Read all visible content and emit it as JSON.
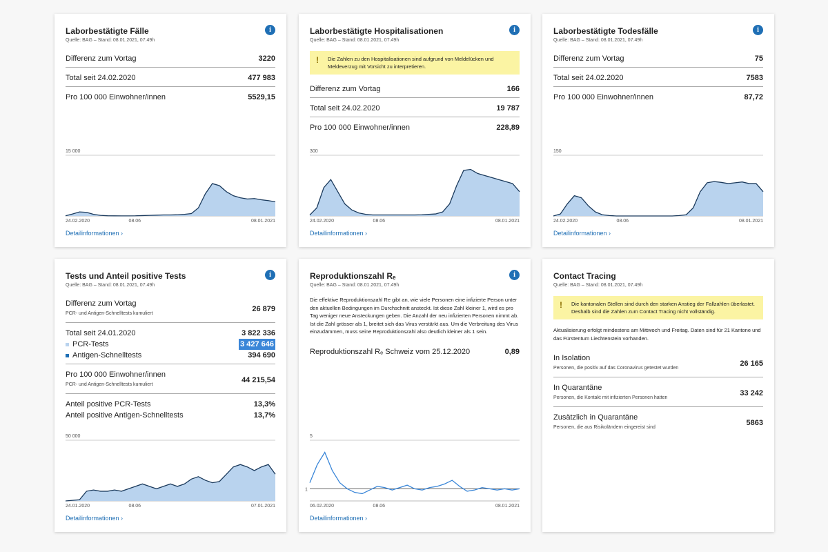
{
  "cards": [
    {
      "title": "Laborbestätigte Fälle",
      "source": "Quelle: BAG – Stand: 08.01.2021, 07.49h",
      "info": true,
      "rows": [
        {
          "label": "Differenz zum Vortag",
          "value": "3220"
        },
        {
          "label": "Total seit 24.02.2020",
          "value": "477 983"
        },
        {
          "label": "Pro 100 000 Einwohner/innen",
          "value": "5529,15"
        }
      ],
      "chart": {
        "ylim": [
          0,
          15000
        ],
        "yticks": [
          {
            "value": 15000,
            "label": "15 000"
          }
        ],
        "xlabels": [
          "24.02.2020",
          "08.06",
          "08.01.2021"
        ],
        "values": [
          50,
          500,
          1000,
          900,
          400,
          150,
          50,
          30,
          20,
          20,
          40,
          100,
          150,
          200,
          250,
          250,
          300,
          400,
          600,
          2000,
          5500,
          8000,
          7500,
          6000,
          5000,
          4500,
          4200,
          4300,
          4000,
          3800,
          3500
        ]
      },
      "link": "Detailinformationen"
    },
    {
      "title": "Laborbestätigte Hospitalisationen",
      "source": "Quelle: BAG – Stand: 08.01.2021, 07.49h",
      "info": true,
      "notice": "Die Zahlen zu den Hospitalisationen sind aufgrund von Meldelücken und Meldeverzug mit Vorsicht zu interpretieren.",
      "rows": [
        {
          "label": "Differenz zum Vortag",
          "value": "166"
        },
        {
          "label": "Total seit 24.02.2020",
          "value": "19 787"
        },
        {
          "label": "Pro 100 000 Einwohner/innen",
          "value": "228,89"
        }
      ],
      "chart": {
        "ylim": [
          0,
          300
        ],
        "yticks": [
          300
        ],
        "xlabels": [
          "24.02.2020",
          "08.06",
          "08.01.2021"
        ],
        "values": [
          5,
          40,
          140,
          180,
          120,
          60,
          30,
          15,
          8,
          5,
          5,
          5,
          5,
          5,
          5,
          5,
          6,
          8,
          10,
          20,
          60,
          150,
          225,
          230,
          210,
          200,
          190,
          180,
          170,
          160,
          120
        ]
      },
      "link": "Detailinformationen"
    },
    {
      "title": "Laborbestätigte Todesfälle",
      "source": "Quelle: BAG – Stand: 08.01.2021, 07.49h",
      "info": true,
      "rows": [
        {
          "label": "Differenz zum Vortag",
          "value": "75"
        },
        {
          "label": "Total seit 24.02.2020",
          "value": "7583"
        },
        {
          "label": "Pro 100 000 Einwohner/innen",
          "value": "87,72"
        }
      ],
      "chart": {
        "ylim": [
          0,
          150
        ],
        "yticks": [
          150
        ],
        "xlabels": [
          "24.02.2020",
          "08.06",
          "08.01.2021"
        ],
        "values": [
          0,
          5,
          30,
          50,
          45,
          25,
          10,
          3,
          1,
          0,
          0,
          0,
          0,
          0,
          0,
          0,
          0,
          0,
          1,
          3,
          20,
          60,
          82,
          85,
          83,
          80,
          82,
          84,
          80,
          80,
          60
        ]
      },
      "link": "Detailinformationen"
    },
    {
      "title": "Tests und Anteil positive Tests",
      "source": "Quelle: BAG – Stand: 08.01.2021, 07.49h",
      "info": true,
      "rows": [
        {
          "label": "Differenz zum Vortag",
          "sub": "PCR- und Antigen-Schnelltests kumuliert",
          "value": "26 879"
        },
        {
          "label": "Total seit 24.01.2020",
          "value": "3 822 336",
          "items": [
            {
              "label": "PCR-Tests",
              "value": "3 427 646",
              "color": "#b9d3ee",
              "highlight": true
            },
            {
              "label": "Antigen-Schnelltests",
              "value": "394 690",
              "color": "#1f6fb5"
            }
          ]
        },
        {
          "label": "Pro 100 000 Einwohner/innen",
          "sub": "PCR- und Antigen-Schnelltests kumuliert",
          "value": "44 215,54"
        },
        {
          "label": "Anteil positive PCR-Tests",
          "value": "13,3%",
          "items": [
            {
              "label": "Anteil positive Antigen-Schnelltests",
              "value": "13,7%"
            }
          ]
        }
      ],
      "chart": {
        "ylim": [
          0,
          50000
        ],
        "yticks": [
          {
            "value": 50000,
            "label": "50 000"
          }
        ],
        "xlabels": [
          "24.01.2020",
          "08.06",
          "07.01.2021"
        ],
        "values": [
          0,
          500,
          1000,
          8000,
          9000,
          8000,
          8000,
          9000,
          8000,
          10000,
          12000,
          14000,
          12000,
          10000,
          12000,
          14000,
          12000,
          14000,
          18000,
          20000,
          17000,
          15000,
          16000,
          22000,
          28000,
          30000,
          28000,
          25000,
          28000,
          30000,
          22000
        ]
      },
      "link": "Detailinformationen"
    },
    {
      "title": "Reproduktionszahl Rₑ",
      "source": "Quelle: BAG – Stand: 08.01.2021, 07.49h",
      "info": true,
      "desc": "Die effektive Reproduktionszahl Re gibt an, wie viele Personen eine infizierte Person unter den aktuellen Bedingungen im Durchschnitt ansteckt. Ist diese Zahl kleiner 1, wird es pro Tag weniger neue Ansteckungen geben. Die Anzahl der neu infizierten Personen nimmt ab. Ist die Zahl grösser als 1, breitet sich das Virus verstärkt aus. Um die Verbreitung des Virus einzudämmen, muss seine Reproduktionszahl also deutlich kleiner als 1 sein.",
      "rows": [
        {
          "label": "Reproduktionszahl Rₑ Schweiz vom 25.12.2020",
          "value": "0,89"
        }
      ],
      "chart": {
        "ylim": [
          0,
          5
        ],
        "yticks": [
          5,
          1
        ],
        "xlabels": [
          "06.02.2020",
          "08.06",
          "08.01.2021"
        ],
        "line_only": true,
        "values": [
          1.5,
          3,
          4,
          2.5,
          1.5,
          1,
          0.7,
          0.6,
          0.9,
          1.2,
          1.1,
          0.9,
          1.1,
          1.3,
          1,
          0.9,
          1.1,
          1.2,
          1.4,
          1.7,
          1.2,
          0.8,
          0.9,
          1.1,
          1,
          0.9,
          1,
          0.9,
          1
        ]
      },
      "link": "Detailinformationen"
    },
    {
      "title": "Contact Tracing",
      "source": "Quelle: BAG – Stand: 08.01.2021, 07.49h",
      "info": false,
      "notice": "Die kantonalen Stellen sind durch den starken Anstieg der Fallzahlen überlastet. Deshalb sind die Zahlen zum Contact Tracing nicht vollständig.",
      "desc": "Aktualisierung erfolgt mindestens am Mittwoch und Freitag. Daten sind für 21 Kantone und das Fürstentum Liechtenstein vorhanden.",
      "rows": [
        {
          "label": "In Isolation",
          "sub": "Personen, die positiv auf das Coronavirus getestet wurden",
          "value": "26 165"
        },
        {
          "label": "In Quarantäne",
          "sub": "Personen, die Kontakt mit infizierten Personen hatten",
          "value": "33 242"
        },
        {
          "label": "Zusätzlich in Quarantäne",
          "sub": "Personen, die aus Risikoländern eingereist sind",
          "value": "5863"
        }
      ]
    }
  ]
}
